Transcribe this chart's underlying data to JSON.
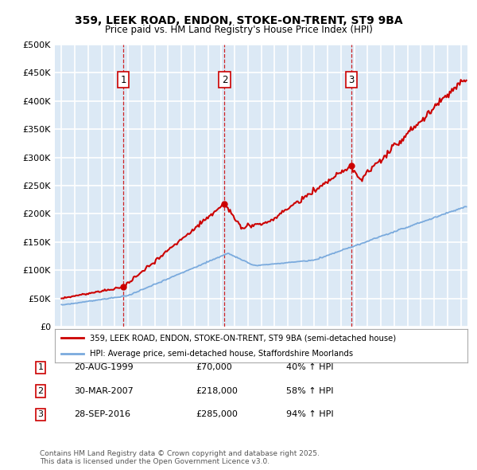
{
  "title1": "359, LEEK ROAD, ENDON, STOKE-ON-TRENT, ST9 9BA",
  "title2": "Price paid vs. HM Land Registry's House Price Index (HPI)",
  "bg_color": "#dce9f5",
  "grid_color": "#ffffff",
  "red_color": "#cc0000",
  "blue_color": "#7aaadd",
  "transactions": [
    {
      "num": 1,
      "date_num": 1999.64,
      "price": 70000,
      "label": "20-AUG-1999",
      "pct": "40%",
      "dir": "↑"
    },
    {
      "num": 2,
      "date_num": 2007.25,
      "price": 218000,
      "label": "30-MAR-2007",
      "pct": "58%",
      "dir": "↑"
    },
    {
      "num": 3,
      "date_num": 2016.75,
      "price": 285000,
      "label": "28-SEP-2016",
      "pct": "94%",
      "dir": "↑"
    }
  ],
  "legend_red": "359, LEEK ROAD, ENDON, STOKE-ON-TRENT, ST9 9BA (semi-detached house)",
  "legend_blue": "HPI: Average price, semi-detached house, Staffordshire Moorlands",
  "footer": "Contains HM Land Registry data © Crown copyright and database right 2025.\nThis data is licensed under the Open Government Licence v3.0.",
  "ylim": [
    0,
    500000
  ],
  "yticks": [
    0,
    50000,
    100000,
    150000,
    200000,
    250000,
    300000,
    350000,
    400000,
    450000,
    500000
  ],
  "xlim_start": 1994.5,
  "xlim_end": 2025.5
}
